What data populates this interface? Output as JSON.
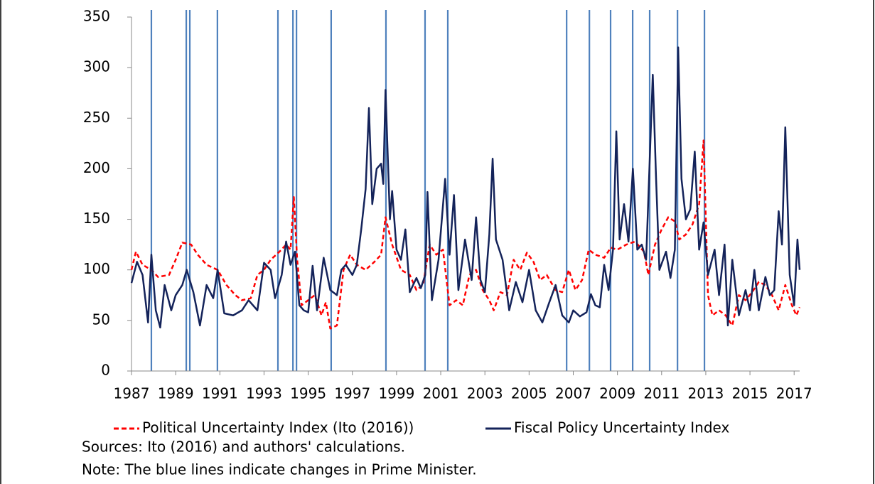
{
  "chart_data": {
    "type": "line",
    "xlim": [
      1987,
      2017.25
    ],
    "ylim": [
      0,
      350
    ],
    "xticks": [
      1987,
      1989,
      1991,
      1993,
      1995,
      1997,
      1999,
      2001,
      2003,
      2005,
      2007,
      2009,
      2011,
      2013,
      2015,
      2017
    ],
    "yticks": [
      0,
      50,
      100,
      150,
      200,
      250,
      300,
      350
    ],
    "grid": false,
    "pm_changes_color": "#4f81bd",
    "pm_changes": [
      1987.9,
      1989.48,
      1989.64,
      1990.89,
      1993.63,
      1994.31,
      1994.47,
      1996.04,
      1998.52,
      2000.29,
      2001.32,
      2006.7,
      2007.73,
      2008.69,
      2009.69,
      2010.46,
      2011.72,
      2012.94
    ],
    "series": [
      {
        "name": "Political Uncertainty Index (Ito (2016))",
        "color": "#ff0000",
        "dashed": true,
        "x": [
          1987.0,
          1987.2,
          1987.5,
          1987.9,
          1988.2,
          1988.7,
          1989.0,
          1989.3,
          1989.7,
          1990.0,
          1990.4,
          1990.9,
          1991.3,
          1991.7,
          1992.0,
          1992.4,
          1992.7,
          1993.0,
          1993.3,
          1993.7,
          1994.0,
          1994.2,
          1994.35,
          1994.5,
          1994.7,
          1995.0,
          1995.3,
          1995.6,
          1995.8,
          1996.0,
          1996.3,
          1996.6,
          1996.9,
          1997.2,
          1997.6,
          1998.0,
          1998.3,
          1998.5,
          1998.8,
          1999.2,
          1999.6,
          1999.9,
          2000.2,
          2000.5,
          2000.8,
          2001.1,
          2001.4,
          2001.7,
          2002.0,
          2002.3,
          2002.6,
          2002.9,
          2003.2,
          2003.4,
          2003.7,
          2004.0,
          2004.3,
          2004.6,
          2004.9,
          2005.2,
          2005.5,
          2005.8,
          2006.2,
          2006.5,
          2006.8,
          2007.1,
          2007.4,
          2007.7,
          2008.0,
          2008.4,
          2008.7,
          2009.0,
          2009.4,
          2009.8,
          2010.2,
          2010.4,
          2010.7,
          2011.0,
          2011.3,
          2011.6,
          2011.8,
          2012.1,
          2012.4,
          2012.7,
          2012.9,
          2013.1,
          2013.3,
          2013.6,
          2013.9,
          2014.2,
          2014.5,
          2014.8,
          2015.1,
          2015.4,
          2015.7,
          2016.0,
          2016.3,
          2016.6,
          2016.9,
          2017.1,
          2017.25
        ],
        "values": [
          100,
          118,
          105,
          100,
          93,
          95,
          110,
          127,
          125,
          115,
          105,
          100,
          85,
          75,
          70,
          72,
          95,
          100,
          110,
          118,
          125,
          120,
          172,
          110,
          65,
          70,
          75,
          55,
          68,
          42,
          45,
          100,
          115,
          105,
          100,
          108,
          115,
          152,
          125,
          100,
          95,
          80,
          85,
          125,
          115,
          120,
          65,
          70,
          65,
          95,
          100,
          80,
          70,
          60,
          78,
          75,
          110,
          100,
          117,
          108,
          90,
          95,
          80,
          78,
          100,
          80,
          90,
          120,
          115,
          112,
          122,
          120,
          125,
          128,
          118,
          95,
          125,
          140,
          152,
          148,
          130,
          135,
          145,
          165,
          228,
          75,
          55,
          60,
          55,
          45,
          75,
          70,
          78,
          88,
          85,
          75,
          60,
          85,
          65,
          55,
          63
        ]
      },
      {
        "name": "Fiscal Policy Uncertainty Index",
        "color": "#14235a",
        "dashed": false,
        "x": [
          1987.0,
          1987.25,
          1987.5,
          1987.75,
          1987.9,
          1988.1,
          1988.3,
          1988.5,
          1988.8,
          1989.0,
          1989.3,
          1989.5,
          1989.8,
          1990.1,
          1990.4,
          1990.7,
          1990.9,
          1991.2,
          1991.6,
          1992.0,
          1992.3,
          1992.7,
          1993.0,
          1993.3,
          1993.5,
          1993.8,
          1994.0,
          1994.2,
          1994.4,
          1994.6,
          1994.8,
          1995.0,
          1995.2,
          1995.4,
          1995.7,
          1996.0,
          1996.3,
          1996.5,
          1996.7,
          1997.0,
          1997.2,
          1997.4,
          1997.6,
          1997.75,
          1997.9,
          1998.1,
          1998.3,
          1998.4,
          1998.5,
          1998.7,
          1998.8,
          1999.0,
          1999.2,
          1999.4,
          1999.6,
          1999.9,
          2000.1,
          2000.3,
          2000.4,
          2000.6,
          2000.9,
          2001.2,
          2001.4,
          2001.6,
          2001.8,
          2002.1,
          2002.4,
          2002.6,
          2002.8,
          2003.0,
          2003.2,
          2003.35,
          2003.5,
          2003.8,
          2004.1,
          2004.4,
          2004.7,
          2005.0,
          2005.3,
          2005.6,
          2005.9,
          2006.2,
          2006.5,
          2006.8,
          2007.0,
          2007.3,
          2007.6,
          2007.8,
          2008.0,
          2008.2,
          2008.4,
          2008.6,
          2008.8,
          2008.95,
          2009.1,
          2009.3,
          2009.5,
          2009.7,
          2009.9,
          2010.1,
          2010.3,
          2010.6,
          2010.75,
          2010.9,
          2011.2,
          2011.4,
          2011.6,
          2011.75,
          2011.9,
          2012.1,
          2012.3,
          2012.5,
          2012.7,
          2012.9,
          2013.1,
          2013.4,
          2013.6,
          2013.85,
          2014.0,
          2014.2,
          2014.5,
          2014.8,
          2015.0,
          2015.2,
          2015.4,
          2015.7,
          2015.9,
          2016.1,
          2016.3,
          2016.45,
          2016.6,
          2016.8,
          2017.0,
          2017.15,
          2017.25
        ],
        "values": [
          87,
          108,
          95,
          48,
          115,
          60,
          43,
          85,
          60,
          75,
          85,
          100,
          78,
          45,
          85,
          72,
          100,
          57,
          55,
          60,
          70,
          60,
          107,
          100,
          72,
          95,
          128,
          105,
          118,
          65,
          60,
          58,
          104,
          60,
          112,
          80,
          75,
          100,
          105,
          95,
          105,
          140,
          180,
          260,
          165,
          200,
          205,
          185,
          278,
          150,
          178,
          120,
          110,
          140,
          78,
          92,
          82,
          95,
          177,
          70,
          110,
          190,
          115,
          174,
          80,
          130,
          90,
          152,
          90,
          78,
          135,
          210,
          130,
          110,
          60,
          88,
          68,
          100,
          60,
          48,
          67,
          85,
          55,
          48,
          60,
          54,
          58,
          76,
          65,
          63,
          105,
          80,
          120,
          237,
          130,
          165,
          128,
          200,
          120,
          125,
          110,
          293,
          190,
          100,
          118,
          92,
          120,
          320,
          190,
          150,
          160,
          217,
          120,
          147,
          95,
          120,
          75,
          125,
          45,
          110,
          55,
          80,
          60,
          100,
          60,
          93,
          75,
          80,
          158,
          125,
          241,
          95,
          65,
          130,
          100
        ]
      }
    ],
    "sources": "Sources: Ito (2016) and authors' calculations.",
    "note": "Note: The blue lines indicate changes in Prime Minister."
  }
}
